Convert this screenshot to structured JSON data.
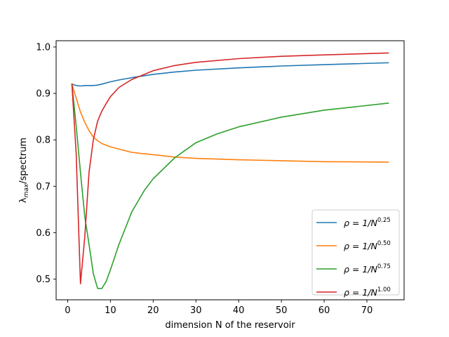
{
  "chart_data": {
    "type": "line",
    "xlabel": "dimension N of the reservoir",
    "ylabel_main": "λ",
    "ylabel_sub": "max",
    "ylabel_rest": "/spectrum",
    "xlim": [
      -2.7,
      78.7
    ],
    "ylim": [
      0.4555,
      1.0135
    ],
    "xticks": [
      0,
      10,
      20,
      30,
      40,
      50,
      60,
      70
    ],
    "yticks": [
      0.5,
      0.6,
      0.7,
      0.8,
      0.9,
      1.0
    ],
    "ytick_labels": [
      "0.5",
      "0.6",
      "0.7",
      "0.8",
      "0.9",
      "1.0"
    ],
    "legend_position": "lower right",
    "series": [
      {
        "name_base": "ρ = 1/N",
        "name_exp": "0.25",
        "color": "#1f77b4",
        "x": [
          1,
          2,
          3,
          4,
          5,
          6,
          7,
          8,
          10,
          12,
          15,
          20,
          25,
          30,
          40,
          50,
          60,
          75
        ],
        "y": [
          0.92,
          0.917,
          0.916,
          0.917,
          0.917,
          0.917,
          0.918,
          0.92,
          0.925,
          0.929,
          0.934,
          0.941,
          0.946,
          0.95,
          0.955,
          0.959,
          0.962,
          0.966
        ]
      },
      {
        "name_base": "ρ = 1/N",
        "name_exp": "0.50",
        "color": "#ff7f0e",
        "x": [
          1,
          2,
          3,
          4,
          5,
          6,
          7,
          8,
          10,
          12,
          15,
          17,
          20,
          25,
          30,
          40,
          50,
          60,
          75
        ],
        "y": [
          0.92,
          0.89,
          0.86,
          0.838,
          0.82,
          0.806,
          0.798,
          0.792,
          0.785,
          0.78,
          0.773,
          0.771,
          0.768,
          0.763,
          0.76,
          0.757,
          0.755,
          0.753,
          0.752
        ]
      },
      {
        "name_base": "ρ = 1/N",
        "name_exp": "0.75",
        "color": "#2ca02c",
        "x": [
          1,
          2,
          3,
          4,
          5,
          6,
          7,
          8,
          9,
          10,
          12,
          15,
          18,
          20,
          25,
          30,
          35,
          40,
          50,
          60,
          75
        ],
        "y": [
          0.92,
          0.83,
          0.73,
          0.635,
          0.575,
          0.512,
          0.48,
          0.48,
          0.495,
          0.52,
          0.575,
          0.645,
          0.692,
          0.716,
          0.761,
          0.794,
          0.813,
          0.828,
          0.849,
          0.864,
          0.879
        ]
      },
      {
        "name_base": "ρ = 1/N",
        "name_exp": "1.00",
        "color": "#d62728",
        "x": [
          1,
          2,
          3,
          4,
          5,
          6,
          7,
          8,
          9,
          10,
          12,
          15,
          20,
          25,
          30,
          40,
          50,
          60,
          75
        ],
        "y": [
          0.92,
          0.77,
          0.49,
          0.59,
          0.73,
          0.8,
          0.84,
          0.862,
          0.878,
          0.893,
          0.913,
          0.93,
          0.949,
          0.96,
          0.967,
          0.975,
          0.98,
          0.983,
          0.987
        ]
      }
    ]
  }
}
